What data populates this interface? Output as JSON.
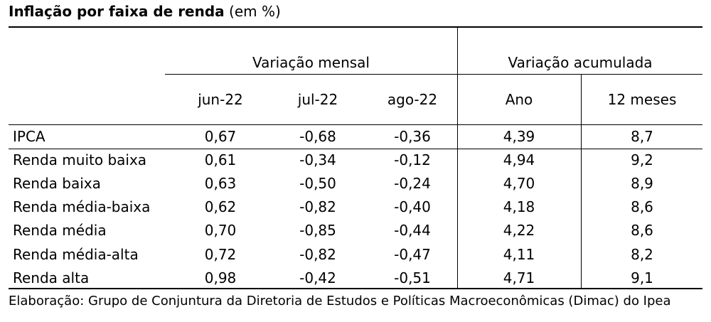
{
  "title": {
    "bold": "Inflação por faixa de renda",
    "normal": "(em %)"
  },
  "headers": {
    "group_monthly": "Variação mensal",
    "group_accum": "Variação acumulada",
    "columns": [
      "jun-22",
      "jul-22",
      "ago-22",
      "Ano",
      "12 meses"
    ]
  },
  "rows": [
    {
      "label": "IPCA",
      "values": [
        "0,67",
        "-0,68",
        "-0,36",
        "4,39",
        "8,7"
      ]
    },
    {
      "label": "Renda muito baixa",
      "values": [
        "0,61",
        "-0,34",
        "-0,12",
        "4,94",
        "9,2"
      ]
    },
    {
      "label": "Renda baixa",
      "values": [
        "0,63",
        "-0,50",
        "-0,24",
        "4,70",
        "8,9"
      ]
    },
    {
      "label": "Renda média-baixa",
      "values": [
        "0,62",
        "-0,82",
        "-0,40",
        "4,18",
        "8,6"
      ]
    },
    {
      "label": "Renda média",
      "values": [
        "0,70",
        "-0,85",
        "-0,44",
        "4,22",
        "8,6"
      ]
    },
    {
      "label": "Renda média-alta",
      "values": [
        "0,72",
        "-0,82",
        "-0,47",
        "4,11",
        "8,2"
      ]
    },
    {
      "label": "Renda alta",
      "values": [
        "0,98",
        "-0,42",
        "-0,51",
        "4,71",
        "9,1"
      ]
    }
  ],
  "footer": "Elaboração: Grupo de Conjuntura da Diretoria de Estudos e Políticas Macroeconômicas (Dimac) do Ipea"
}
